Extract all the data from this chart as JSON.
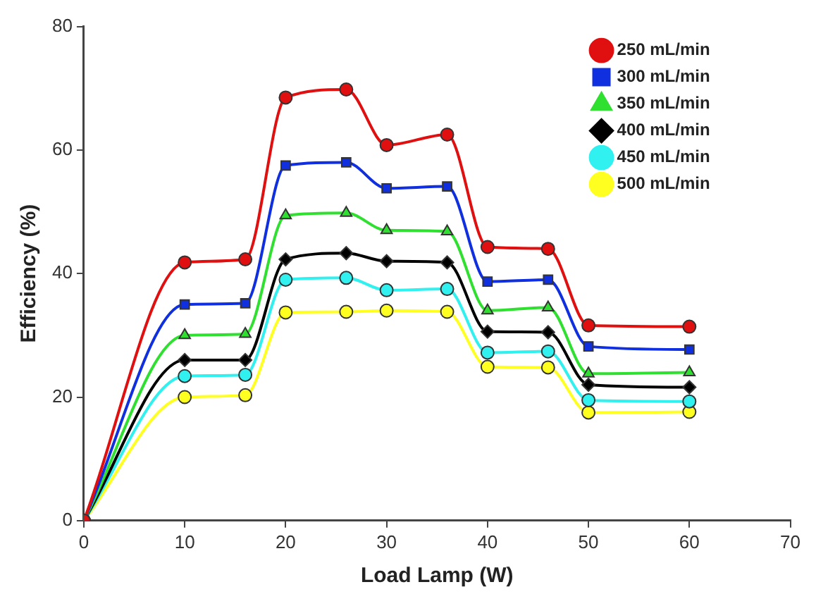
{
  "chart_data": {
    "type": "line",
    "xlabel": "Load Lamp (W)",
    "ylabel": "Efficiency (%)",
    "x": [
      0,
      10,
      16,
      20,
      26,
      30,
      36,
      40,
      46,
      50,
      60
    ],
    "xlim": [
      0,
      70
    ],
    "xticks": [
      0,
      10,
      20,
      30,
      40,
      50,
      60,
      70
    ],
    "ylim": [
      0,
      80
    ],
    "yticks": [
      0,
      20,
      40,
      60,
      80
    ],
    "grid": false,
    "legend": "top right",
    "line_style": "solid",
    "series": [
      {
        "name": "250 mL/min",
        "color": "#e01010",
        "marker": "circle",
        "values": [
          0,
          41.8,
          42.3,
          68.5,
          69.8,
          60.8,
          62.5,
          44.3,
          44,
          31.6,
          31.4
        ]
      },
      {
        "name": "300 mL/min",
        "color": "#1030e0",
        "marker": "square",
        "values": [
          0,
          35,
          35.2,
          57.5,
          58,
          53.8,
          54.1,
          38.7,
          39,
          28.2,
          27.7
        ]
      },
      {
        "name": "350 mL/min",
        "color": "#30e030",
        "marker": "triangle",
        "values": [
          0,
          30,
          30.2,
          49.4,
          49.8,
          47,
          46.8,
          34,
          34.5,
          23.8,
          24
        ]
      },
      {
        "name": "400 mL/min",
        "color": "#000000",
        "marker": "diamond",
        "values": [
          0,
          26,
          26,
          42.3,
          43.3,
          42,
          41.8,
          30.6,
          30.5,
          22,
          21.6
        ]
      },
      {
        "name": "450 mL/min",
        "color": "#30f0f0",
        "marker": "circle",
        "values": [
          0,
          23.4,
          23.6,
          39,
          39.3,
          37.3,
          37.5,
          27.2,
          27.4,
          19.5,
          19.3
        ]
      },
      {
        "name": "500 mL/min",
        "color": "#ffff20",
        "marker": "circle",
        "values": [
          0,
          20,
          20.3,
          33.7,
          33.8,
          34,
          33.8,
          24.9,
          24.8,
          17.5,
          17.6
        ]
      }
    ]
  }
}
